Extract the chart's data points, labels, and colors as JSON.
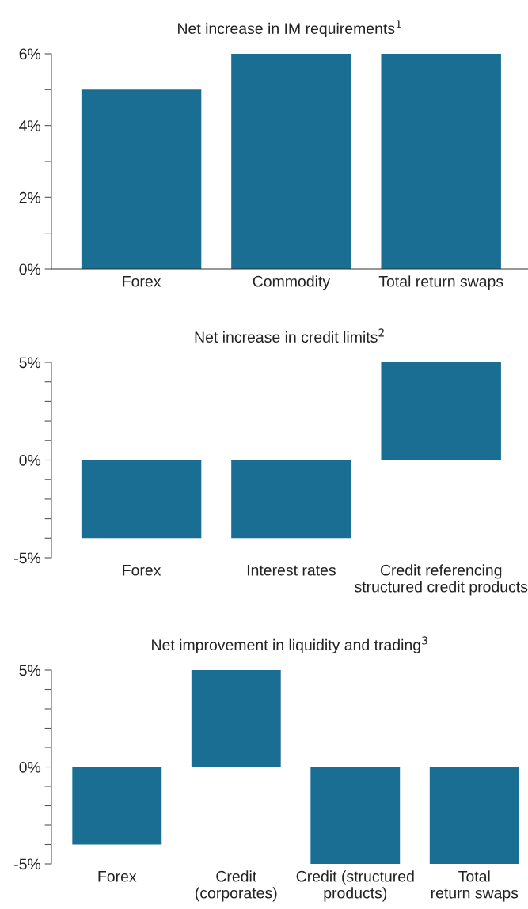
{
  "chart_data": [
    {
      "type": "bar",
      "title": "Net increase in IM requirements$^{1}$",
      "categories": [
        "Forex",
        "Commodity",
        "Total return swaps"
      ],
      "values": [
        5,
        6,
        6
      ],
      "color": "#1a6e94",
      "ylim": [
        0,
        6
      ],
      "yticks": [
        {
          "value": 0,
          "label": "0%"
        },
        {
          "value": 1,
          "label": null
        },
        {
          "value": 2,
          "label": "2%"
        },
        {
          "value": 3,
          "label": null
        },
        {
          "value": 4,
          "label": "4%"
        },
        {
          "value": 5,
          "label": null
        },
        {
          "value": 6,
          "label": "6%"
        }
      ],
      "grid": false
    },
    {
      "type": "bar",
      "title": "Net increase in credit limits$^{2}$",
      "categories": [
        "Forex",
        "Interest rates",
        "Credit referencing\nstructured credit products"
      ],
      "values": [
        -4,
        -4,
        5
      ],
      "color": "#1a6e94",
      "ylim": [
        -5,
        5
      ],
      "yticks": [
        {
          "value": -5,
          "label": "-5%"
        },
        {
          "value": -4,
          "label": null
        },
        {
          "value": -3,
          "label": null
        },
        {
          "value": -2,
          "label": null
        },
        {
          "value": -1,
          "label": null
        },
        {
          "value": 0,
          "label": "0%"
        },
        {
          "value": 1,
          "label": null
        },
        {
          "value": 2,
          "label": null
        },
        {
          "value": 3,
          "label": null
        },
        {
          "value": 4,
          "label": null
        },
        {
          "value": 5,
          "label": "5%"
        }
      ]
    },
    {
      "type": "bar",
      "title": "Net improvement in liquidity and trading$^{3}$",
      "categories": [
        "Forex",
        "Credit\n(corporates)",
        "Credit (structured\nproducts)",
        "Total\nreturn swaps"
      ],
      "values": [
        -4,
        5,
        -5,
        -5
      ],
      "color": "#1a6e94",
      "ylim": [
        -5,
        5
      ],
      "yticks": [
        {
          "value": -5,
          "label": "-5%"
        },
        {
          "value": -4,
          "label": null
        },
        {
          "value": -3,
          "label": null
        },
        {
          "value": -2,
          "label": null
        },
        {
          "value": -1,
          "label": null
        },
        {
          "value": 0,
          "label": "0%"
        },
        {
          "value": 1,
          "label": null
        },
        {
          "value": 2,
          "label": null
        },
        {
          "value": 3,
          "label": null
        },
        {
          "value": 4,
          "label": null
        },
        {
          "value": 5,
          "label": "5%"
        }
      ]
    }
  ]
}
